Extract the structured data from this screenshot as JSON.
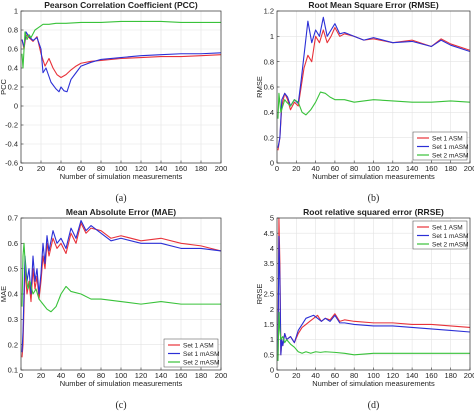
{
  "figure": {
    "panels": [
      {
        "title": "Pearson Correlation Coefficient (PCC)",
        "xlabel": "Number of simulation measurements",
        "ylabel": "PCC",
        "caption": "(a)"
      },
      {
        "title": "Root Mean Square Error (RMSE)",
        "xlabel": "Number of simulation measurements",
        "ylabel": "RMSE",
        "caption": "(b)"
      },
      {
        "title": "Mean Absolute Error (MAE)",
        "xlabel": "Number of simulation measurements",
        "ylabel": "MAE",
        "caption": "(c)"
      },
      {
        "title": "Root relative squared error (RRSE)",
        "xlabel": "Number of simulation measurements",
        "ylabel": "RRSE",
        "caption": "(d)"
      }
    ]
  },
  "colors": {
    "set1_asm": "#e8323a",
    "set1_masm": "#2b2fd6",
    "set2_masm": "#39c23a"
  },
  "chart_data": [
    {
      "type": "line",
      "title": "Pearson Correlation Coefficient (PCC)",
      "xlabel": "Number of simulation measurements",
      "ylabel": "PCC",
      "xlim": [
        0,
        200
      ],
      "ylim": [
        -0.6,
        1
      ],
      "xticks": [
        0,
        20,
        40,
        60,
        80,
        100,
        120,
        140,
        160,
        180,
        200
      ],
      "yticks": [
        -0.6,
        -0.4,
        -0.2,
        0,
        0.2,
        0.4,
        0.6,
        0.8,
        1
      ],
      "grid": true,
      "legend": "none",
      "series": [
        {
          "name": "Set 1 ASM",
          "color": "#e8323a",
          "x": [
            1,
            3,
            5,
            8,
            12,
            16,
            20,
            24,
            28,
            32,
            36,
            40,
            45,
            50,
            55,
            60,
            70,
            80,
            100,
            120,
            140,
            160,
            180,
            200
          ],
          "y": [
            0.7,
            0.6,
            0.75,
            0.72,
            0.68,
            0.73,
            0.55,
            0.42,
            0.5,
            0.4,
            0.33,
            0.3,
            0.33,
            0.38,
            0.42,
            0.45,
            0.47,
            0.48,
            0.5,
            0.51,
            0.52,
            0.52,
            0.53,
            0.54
          ]
        },
        {
          "name": "Set 1 mASM",
          "color": "#2b2fd6",
          "x": [
            1,
            3,
            5,
            8,
            12,
            16,
            20,
            22,
            25,
            30,
            35,
            38,
            40,
            43,
            46,
            50,
            55,
            60,
            70,
            80,
            100,
            120,
            140,
            160,
            180,
            200
          ],
          "y": [
            0.7,
            0.62,
            0.78,
            0.73,
            0.69,
            0.72,
            0.6,
            0.35,
            0.4,
            0.25,
            0.18,
            0.15,
            0.2,
            0.16,
            0.15,
            0.28,
            0.35,
            0.42,
            0.46,
            0.49,
            0.51,
            0.53,
            0.54,
            0.55,
            0.55,
            0.56
          ]
        },
        {
          "name": "Set 2 mASM",
          "color": "#39c23a",
          "x": [
            1,
            2,
            4,
            6,
            8,
            10,
            14,
            18,
            22,
            28,
            35,
            45,
            60,
            80,
            100,
            120,
            140,
            160,
            180,
            200
          ],
          "y": [
            0.55,
            0.4,
            0.78,
            0.7,
            0.75,
            0.72,
            0.8,
            0.83,
            0.86,
            0.86,
            0.87,
            0.87,
            0.88,
            0.88,
            0.89,
            0.89,
            0.89,
            0.88,
            0.88,
            0.88
          ]
        }
      ]
    },
    {
      "type": "line",
      "title": "Root Mean Square Error (RMSE)",
      "xlabel": "Number of simulation measurements",
      "ylabel": "RMSE",
      "xlim": [
        0,
        200
      ],
      "ylim": [
        0,
        1.2
      ],
      "xticks": [
        0,
        20,
        40,
        60,
        80,
        100,
        120,
        140,
        160,
        180,
        200
      ],
      "yticks": [
        0,
        0.2,
        0.4,
        0.6,
        0.8,
        1,
        1.2
      ],
      "grid": true,
      "legend": "lower-right",
      "series": [
        {
          "name": "Set 1 ASM",
          "color": "#e8323a",
          "x": [
            1,
            3,
            5,
            8,
            11,
            14,
            18,
            22,
            25,
            28,
            32,
            36,
            40,
            44,
            48,
            52,
            56,
            60,
            65,
            70,
            80,
            90,
            100,
            120,
            140,
            160,
            170,
            180,
            200
          ],
          "y": [
            0.1,
            0.2,
            0.45,
            0.55,
            0.5,
            0.42,
            0.48,
            0.45,
            0.6,
            0.75,
            0.85,
            0.8,
            1.0,
            0.95,
            1.05,
            0.95,
            1.0,
            1.07,
            1.0,
            1.02,
            1.0,
            0.97,
            0.98,
            0.95,
            0.97,
            0.92,
            0.98,
            0.94,
            0.89
          ]
        },
        {
          "name": "Set 1 mASM",
          "color": "#2b2fd6",
          "x": [
            1,
            3,
            5,
            8,
            11,
            14,
            18,
            22,
            25,
            28,
            32,
            36,
            40,
            44,
            48,
            52,
            56,
            60,
            65,
            70,
            80,
            90,
            100,
            120,
            140,
            160,
            170,
            180,
            200
          ],
          "y": [
            0.12,
            0.2,
            0.5,
            0.55,
            0.52,
            0.45,
            0.5,
            0.47,
            0.65,
            0.85,
            1.12,
            0.95,
            1.05,
            1.0,
            1.15,
            1.0,
            1.05,
            1.1,
            1.02,
            1.03,
            1.0,
            0.97,
            0.99,
            0.95,
            0.96,
            0.92,
            0.97,
            0.93,
            0.88
          ]
        },
        {
          "name": "Set 2 mASM",
          "color": "#39c23a",
          "x": [
            1,
            2,
            4,
            6,
            8,
            10,
            14,
            18,
            22,
            26,
            30,
            35,
            40,
            45,
            50,
            55,
            60,
            70,
            80,
            100,
            120,
            140,
            160,
            180,
            200
          ],
          "y": [
            0.35,
            0.55,
            0.4,
            0.45,
            0.5,
            0.48,
            0.45,
            0.5,
            0.48,
            0.4,
            0.38,
            0.42,
            0.48,
            0.56,
            0.55,
            0.52,
            0.5,
            0.5,
            0.48,
            0.5,
            0.49,
            0.48,
            0.48,
            0.49,
            0.48
          ]
        }
      ]
    },
    {
      "type": "line",
      "title": "Mean Absolute Error (MAE)",
      "xlabel": "Number of simulation measurements",
      "ylabel": "MAE",
      "xlim": [
        0,
        200
      ],
      "ylim": [
        0.1,
        0.7
      ],
      "xticks": [
        0,
        20,
        40,
        60,
        80,
        100,
        120,
        140,
        160,
        180,
        200
      ],
      "yticks": [
        0.1,
        0.2,
        0.3,
        0.4,
        0.5,
        0.6,
        0.7
      ],
      "grid": true,
      "legend": "lower-right",
      "series": [
        {
          "name": "Set 1 ASM",
          "color": "#e8323a",
          "x": [
            1,
            2,
            4,
            6,
            8,
            10,
            12,
            14,
            16,
            18,
            20,
            22,
            24,
            26,
            28,
            32,
            36,
            40,
            45,
            50,
            55,
            60,
            65,
            70,
            80,
            90,
            100,
            120,
            140,
            160,
            180,
            200
          ],
          "y": [
            0.15,
            0.2,
            0.5,
            0.4,
            0.45,
            0.37,
            0.5,
            0.42,
            0.47,
            0.38,
            0.45,
            0.55,
            0.5,
            0.6,
            0.55,
            0.62,
            0.58,
            0.6,
            0.56,
            0.64,
            0.6,
            0.68,
            0.64,
            0.66,
            0.65,
            0.62,
            0.63,
            0.61,
            0.62,
            0.6,
            0.59,
            0.57
          ]
        },
        {
          "name": "Set 1 mASM",
          "color": "#2b2fd6",
          "x": [
            1,
            2,
            4,
            6,
            8,
            10,
            12,
            14,
            16,
            18,
            20,
            22,
            24,
            26,
            28,
            32,
            36,
            40,
            45,
            50,
            55,
            60,
            65,
            70,
            80,
            90,
            100,
            120,
            140,
            160,
            180,
            200
          ],
          "y": [
            0.17,
            0.25,
            0.55,
            0.45,
            0.5,
            0.4,
            0.55,
            0.45,
            0.5,
            0.4,
            0.48,
            0.6,
            0.52,
            0.63,
            0.57,
            0.65,
            0.6,
            0.62,
            0.58,
            0.66,
            0.62,
            0.69,
            0.65,
            0.67,
            0.64,
            0.61,
            0.62,
            0.6,
            0.6,
            0.58,
            0.58,
            0.57
          ]
        },
        {
          "name": "Set 2 mASM",
          "color": "#39c23a",
          "x": [
            1,
            2,
            3,
            5,
            7,
            9,
            12,
            15,
            18,
            22,
            26,
            30,
            35,
            40,
            45,
            50,
            60,
            70,
            80,
            100,
            120,
            140,
            160,
            180,
            200
          ],
          "y": [
            0.35,
            0.55,
            0.6,
            0.47,
            0.42,
            0.45,
            0.4,
            0.42,
            0.38,
            0.36,
            0.34,
            0.33,
            0.35,
            0.4,
            0.43,
            0.41,
            0.4,
            0.38,
            0.38,
            0.37,
            0.36,
            0.37,
            0.36,
            0.36,
            0.36
          ]
        }
      ]
    },
    {
      "type": "line",
      "title": "Root relative squared error (RRSE)",
      "xlabel": "Number of simulation measurements",
      "ylabel": "RRSE",
      "xlim": [
        0,
        200
      ],
      "ylim": [
        0,
        5
      ],
      "xticks": [
        0,
        20,
        40,
        60,
        80,
        100,
        120,
        140,
        160,
        180,
        200
      ],
      "yticks": [
        0,
        0.5,
        1,
        1.5,
        2,
        2.5,
        3,
        3.5,
        4,
        4.5,
        5
      ],
      "grid": true,
      "legend": "top-right",
      "series": [
        {
          "name": "Set 1 ASM",
          "color": "#e8323a",
          "x": [
            1,
            2,
            3,
            4,
            5,
            6,
            8,
            10,
            14,
            18,
            22,
            26,
            30,
            34,
            38,
            42,
            46,
            50,
            55,
            60,
            65,
            70,
            80,
            100,
            120,
            140,
            160,
            180,
            200
          ],
          "y": [
            0.3,
            5.0,
            3.5,
            0.5,
            1.0,
            0.8,
            1.2,
            1.0,
            1.1,
            0.9,
            1.2,
            1.4,
            1.5,
            1.6,
            1.7,
            1.8,
            1.6,
            1.7,
            1.65,
            1.85,
            1.6,
            1.65,
            1.6,
            1.55,
            1.55,
            1.5,
            1.5,
            1.45,
            1.4
          ]
        },
        {
          "name": "Set 1 mASM",
          "color": "#2b2fd6",
          "x": [
            1,
            2,
            3,
            4,
            5,
            6,
            8,
            10,
            14,
            18,
            22,
            26,
            30,
            34,
            38,
            42,
            46,
            50,
            55,
            60,
            65,
            70,
            80,
            100,
            120,
            140,
            160,
            180,
            200
          ],
          "y": [
            0.3,
            4.4,
            3.0,
            0.5,
            1.0,
            0.8,
            1.2,
            1.0,
            1.1,
            0.9,
            1.3,
            1.5,
            1.7,
            1.75,
            1.8,
            1.7,
            1.6,
            1.7,
            1.6,
            1.8,
            1.55,
            1.55,
            1.5,
            1.45,
            1.45,
            1.4,
            1.35,
            1.3,
            1.25
          ]
        },
        {
          "name": "Set 2 mASM",
          "color": "#39c23a",
          "x": [
            1,
            2,
            3,
            4,
            6,
            8,
            10,
            14,
            18,
            22,
            26,
            30,
            35,
            40,
            45,
            50,
            60,
            70,
            80,
            100,
            120,
            140,
            160,
            180,
            200
          ],
          "y": [
            0.3,
            1.9,
            1.3,
            1.0,
            1.1,
            0.9,
            1.0,
            0.85,
            0.75,
            0.6,
            0.55,
            0.6,
            0.55,
            0.6,
            0.58,
            0.6,
            0.58,
            0.55,
            0.5,
            0.55,
            0.55,
            0.55,
            0.55,
            0.55,
            0.55
          ]
        }
      ]
    }
  ]
}
